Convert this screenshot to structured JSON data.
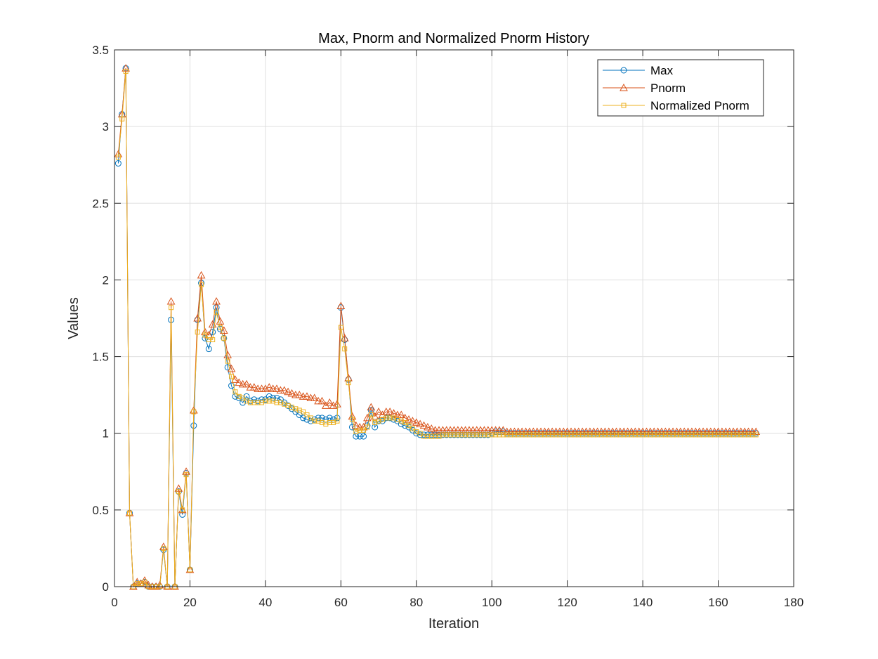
{
  "chart_data": {
    "type": "line",
    "title": "Max, Pnorm and Normalized Pnorm History",
    "xlabel": "Iteration",
    "ylabel": "Values",
    "xlim": [
      0,
      180
    ],
    "ylim": [
      0,
      3.5
    ],
    "xticks": [
      0,
      20,
      40,
      60,
      80,
      100,
      120,
      140,
      160,
      180
    ],
    "yticks": [
      0,
      0.5,
      1,
      1.5,
      2,
      2.5,
      3,
      3.5
    ],
    "xtick_labels": [
      "0",
      "20",
      "40",
      "60",
      "80",
      "100",
      "120",
      "140",
      "160",
      "180"
    ],
    "ytick_labels": [
      "0",
      "0.5",
      "1",
      "1.5",
      "2",
      "2.5",
      "3",
      "3.5"
    ],
    "grid": true,
    "legend_position": "top-right",
    "x": [
      1,
      2,
      3,
      4,
      5,
      6,
      7,
      8,
      9,
      10,
      11,
      12,
      13,
      14,
      15,
      16,
      17,
      18,
      19,
      20,
      21,
      22,
      23,
      24,
      25,
      26,
      27,
      28,
      29,
      30,
      31,
      32,
      33,
      34,
      35,
      36,
      37,
      38,
      39,
      40,
      41,
      42,
      43,
      44,
      45,
      46,
      47,
      48,
      49,
      50,
      51,
      52,
      53,
      54,
      55,
      56,
      57,
      58,
      59,
      60,
      61,
      62,
      63,
      64,
      65,
      66,
      67,
      68,
      69,
      70,
      71,
      72,
      73,
      74,
      75,
      76,
      77,
      78,
      79,
      80,
      81,
      82,
      83,
      84,
      85,
      86,
      87,
      88,
      89,
      90,
      91,
      92,
      93,
      94,
      95,
      96,
      97,
      98,
      99,
      100,
      101,
      102,
      103,
      104,
      105,
      106,
      107,
      108,
      109,
      110,
      111,
      112,
      113,
      114,
      115,
      116,
      117,
      118,
      119,
      120,
      121,
      122,
      123,
      124,
      125,
      126,
      127,
      128,
      129,
      130,
      131,
      132,
      133,
      134,
      135,
      136,
      137,
      138,
      139,
      140,
      141,
      142,
      143,
      144,
      145,
      146,
      147,
      148,
      149,
      150,
      151,
      152,
      153,
      154,
      155,
      156,
      157,
      158,
      159,
      160,
      161,
      162,
      163,
      164,
      165,
      166,
      167,
      168,
      169,
      170
    ],
    "series": [
      {
        "name": "Max",
        "color": "#0072BD",
        "marker": "circle",
        "values": [
          2.76,
          3.08,
          3.38,
          0.48,
          0.0,
          0.02,
          0.02,
          0.03,
          0.0,
          0.0,
          0.0,
          0.0,
          0.24,
          0.0,
          1.74,
          0.0,
          0.62,
          0.47,
          0.74,
          0.11,
          1.05,
          1.74,
          1.98,
          1.62,
          1.55,
          1.66,
          1.82,
          1.68,
          1.62,
          1.43,
          1.31,
          1.24,
          1.23,
          1.2,
          1.24,
          1.21,
          1.22,
          1.21,
          1.22,
          1.22,
          1.24,
          1.23,
          1.23,
          1.22,
          1.2,
          1.18,
          1.16,
          1.14,
          1.12,
          1.1,
          1.09,
          1.08,
          1.09,
          1.1,
          1.1,
          1.09,
          1.1,
          1.09,
          1.1,
          1.82,
          1.61,
          1.35,
          1.04,
          0.98,
          0.98,
          0.98,
          1.05,
          1.15,
          1.04,
          1.08,
          1.08,
          1.1,
          1.1,
          1.09,
          1.08,
          1.06,
          1.05,
          1.04,
          1.02,
          1.0,
          0.99,
          0.99,
          0.99,
          0.99,
          0.99,
          0.99,
          0.99,
          0.99,
          0.99,
          0.99,
          0.99,
          0.99,
          0.99,
          0.99,
          0.99,
          0.99,
          0.99,
          0.99,
          0.99,
          1.0,
          1.01,
          1.01,
          1.01,
          1.0,
          1.0,
          1.0,
          1.0,
          1.0,
          1.0,
          1.0,
          1.0,
          1.0,
          1.0,
          1.0,
          1.0,
          1.0,
          1.0,
          1.0,
          1.0,
          1.0,
          1.0,
          1.0,
          1.0,
          1.0,
          1.0,
          1.0,
          1.0,
          1.0,
          1.0,
          1.0,
          1.0,
          1.0,
          1.0,
          1.0,
          1.0,
          1.0,
          1.0,
          1.0,
          1.0,
          1.0,
          1.0,
          1.0,
          1.0,
          1.0,
          1.0,
          1.0,
          1.0,
          1.0,
          1.0,
          1.0,
          1.0,
          1.0,
          1.0,
          1.0,
          1.0,
          1.0,
          1.0,
          1.0,
          1.0,
          1.0,
          1.0,
          1.0,
          1.0,
          1.0,
          1.0,
          1.0,
          1.0,
          1.0,
          1.0,
          1.0
        ]
      },
      {
        "name": "Pnorm",
        "color": "#D95319",
        "marker": "triangle",
        "values": [
          2.82,
          3.08,
          3.38,
          0.48,
          0.0,
          0.03,
          0.02,
          0.04,
          0.01,
          0.0,
          0.0,
          0.01,
          0.26,
          0.0,
          1.86,
          0.0,
          0.64,
          0.5,
          0.75,
          0.11,
          1.15,
          1.75,
          2.03,
          1.66,
          1.64,
          1.71,
          1.86,
          1.73,
          1.67,
          1.51,
          1.42,
          1.35,
          1.33,
          1.32,
          1.32,
          1.3,
          1.3,
          1.29,
          1.29,
          1.29,
          1.3,
          1.29,
          1.29,
          1.28,
          1.28,
          1.27,
          1.26,
          1.25,
          1.25,
          1.24,
          1.24,
          1.23,
          1.23,
          1.21,
          1.21,
          1.18,
          1.2,
          1.18,
          1.19,
          1.83,
          1.62,
          1.36,
          1.11,
          1.05,
          1.04,
          1.04,
          1.1,
          1.17,
          1.11,
          1.14,
          1.12,
          1.14,
          1.14,
          1.13,
          1.12,
          1.12,
          1.1,
          1.09,
          1.08,
          1.07,
          1.06,
          1.05,
          1.04,
          1.03,
          1.02,
          1.02,
          1.02,
          1.02,
          1.02,
          1.02,
          1.02,
          1.02,
          1.02,
          1.02,
          1.02,
          1.02,
          1.02,
          1.02,
          1.02,
          1.02,
          1.02,
          1.02,
          1.02,
          1.01,
          1.01,
          1.01,
          1.01,
          1.01,
          1.01,
          1.01,
          1.01,
          1.01,
          1.01,
          1.01,
          1.01,
          1.01,
          1.01,
          1.01,
          1.01,
          1.01,
          1.01,
          1.01,
          1.01,
          1.01,
          1.01,
          1.01,
          1.01,
          1.01,
          1.01,
          1.01,
          1.01,
          1.01,
          1.01,
          1.01,
          1.01,
          1.01,
          1.01,
          1.01,
          1.01,
          1.01,
          1.01,
          1.01,
          1.01,
          1.01,
          1.01,
          1.01,
          1.01,
          1.01,
          1.01,
          1.01,
          1.01,
          1.01,
          1.01,
          1.01,
          1.01,
          1.01,
          1.01,
          1.01,
          1.01,
          1.01,
          1.01,
          1.01,
          1.01,
          1.01,
          1.01,
          1.01,
          1.01,
          1.01,
          1.01,
          1.01
        ]
      },
      {
        "name": "Normalized Pnorm",
        "color": "#EDB120",
        "marker": "square",
        "values": [
          2.8,
          3.05,
          3.36,
          0.48,
          0.0,
          0.02,
          0.02,
          0.03,
          0.0,
          0.0,
          0.0,
          0.0,
          0.25,
          0.0,
          1.82,
          0.0,
          0.62,
          0.5,
          0.73,
          0.11,
          1.14,
          1.66,
          1.97,
          1.64,
          1.61,
          1.61,
          1.79,
          1.69,
          1.62,
          1.47,
          1.37,
          1.27,
          1.24,
          1.23,
          1.21,
          1.2,
          1.2,
          1.2,
          1.2,
          1.21,
          1.21,
          1.21,
          1.2,
          1.2,
          1.19,
          1.18,
          1.17,
          1.16,
          1.15,
          1.14,
          1.12,
          1.1,
          1.08,
          1.08,
          1.07,
          1.06,
          1.07,
          1.07,
          1.08,
          1.69,
          1.55,
          1.33,
          1.09,
          1.01,
          1.02,
          1.02,
          1.04,
          1.12,
          1.07,
          1.08,
          1.09,
          1.1,
          1.1,
          1.1,
          1.09,
          1.08,
          1.07,
          1.05,
          1.03,
          1.01,
          1.0,
          0.98,
          0.98,
          0.98,
          0.98,
          0.98,
          0.99,
          0.99,
          0.99,
          0.99,
          0.99,
          0.99,
          0.99,
          0.99,
          0.99,
          0.99,
          0.99,
          0.99,
          0.99,
          0.99,
          0.99,
          0.99,
          0.99,
          0.99,
          0.99,
          0.99,
          0.99,
          0.99,
          0.99,
          0.99,
          0.99,
          0.99,
          0.99,
          0.99,
          0.99,
          0.99,
          0.99,
          0.99,
          0.99,
          0.99,
          0.99,
          0.99,
          0.99,
          0.99,
          0.99,
          0.99,
          0.99,
          0.99,
          0.99,
          0.99,
          0.99,
          0.99,
          0.99,
          0.99,
          0.99,
          0.99,
          0.99,
          0.99,
          0.99,
          0.99,
          0.99,
          0.99,
          0.99,
          0.99,
          0.99,
          0.99,
          0.99,
          0.99,
          0.99,
          0.99,
          0.99,
          0.99,
          0.99,
          0.99,
          0.99,
          0.99,
          0.99,
          0.99,
          0.99,
          0.99,
          0.99,
          0.99,
          0.99,
          0.99,
          0.99,
          0.99,
          0.99,
          0.99,
          0.99,
          0.99
        ]
      }
    ]
  }
}
